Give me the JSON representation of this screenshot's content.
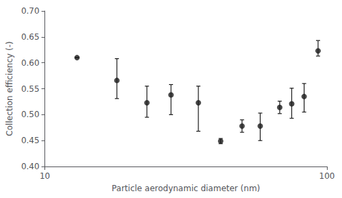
{
  "chart_data": {
    "type": "scatter",
    "x": [
      13,
      18,
      23,
      28,
      35,
      42,
      50,
      58,
      68,
      75,
      83,
      93
    ],
    "values": [
      0.61,
      0.566,
      0.523,
      0.538,
      0.523,
      0.449,
      0.478,
      0.478,
      0.514,
      0.521,
      0.535,
      0.623
    ],
    "yerr_low": [
      0.0,
      0.035,
      0.028,
      0.038,
      0.055,
      0.005,
      0.012,
      0.028,
      0.012,
      0.028,
      0.03,
      0.01
    ],
    "yerr_high": [
      0.0,
      0.042,
      0.032,
      0.02,
      0.032,
      0.005,
      0.012,
      0.025,
      0.012,
      0.03,
      0.025,
      0.02
    ],
    "xlabel": "Particle aerodynamic diameter (nm)",
    "ylabel": "Collection efficiency (-)",
    "log": "x",
    "xlim": [
      10,
      100
    ],
    "xticks": [
      10,
      100
    ],
    "ylim": [
      0.4,
      0.7
    ],
    "yticks": [
      {
        "value": 0.4,
        "label": "0.40"
      },
      0.45,
      {
        "value": 0.5,
        "label": "0.50"
      },
      0.55,
      {
        "value": 0.6,
        "label": "0.60"
      },
      0.65,
      {
        "value": 0.7,
        "label": "0.70"
      }
    ],
    "color": "#1a1a1a",
    "marker": "circle",
    "grid": false
  }
}
